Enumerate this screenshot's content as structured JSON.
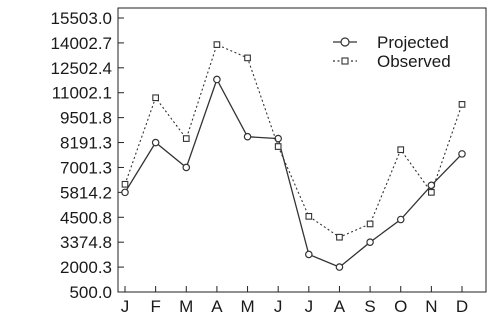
{
  "chart_data": {
    "type": "line",
    "categories": [
      "J",
      "F",
      "M",
      "A",
      "M",
      "J",
      "J",
      "A",
      "S",
      "O",
      "N",
      "D"
    ],
    "y_ticks": [
      "15503.0",
      "14002.7",
      "12502.4",
      "11002.1",
      "9501.8",
      "8191.3",
      "7001.3",
      "5814.2",
      "4500.8",
      "3374.8",
      "2000.3",
      "500.0"
    ],
    "series": [
      {
        "name": "Projected",
        "marker": "circle",
        "line_style": "solid",
        "values": [
          5814.2,
          8191.3,
          7001.3,
          11800,
          8500,
          8400,
          2700,
          2000.3,
          3374.8,
          4400,
          6150,
          7650
        ]
      },
      {
        "name": "Observed",
        "marker": "square",
        "line_style": "dotted",
        "values": [
          6200,
          10700,
          8400,
          13900,
          13100,
          8000,
          4550,
          3600,
          4200,
          7850,
          5814.2,
          10300
        ]
      }
    ],
    "title": "",
    "xlabel": "",
    "ylabel": "",
    "grid": false,
    "legend_position": "top-right",
    "colors": {
      "line": "#333333",
      "axis": "#222222",
      "text": "#1a1a1a",
      "background": "#ffffff"
    }
  }
}
